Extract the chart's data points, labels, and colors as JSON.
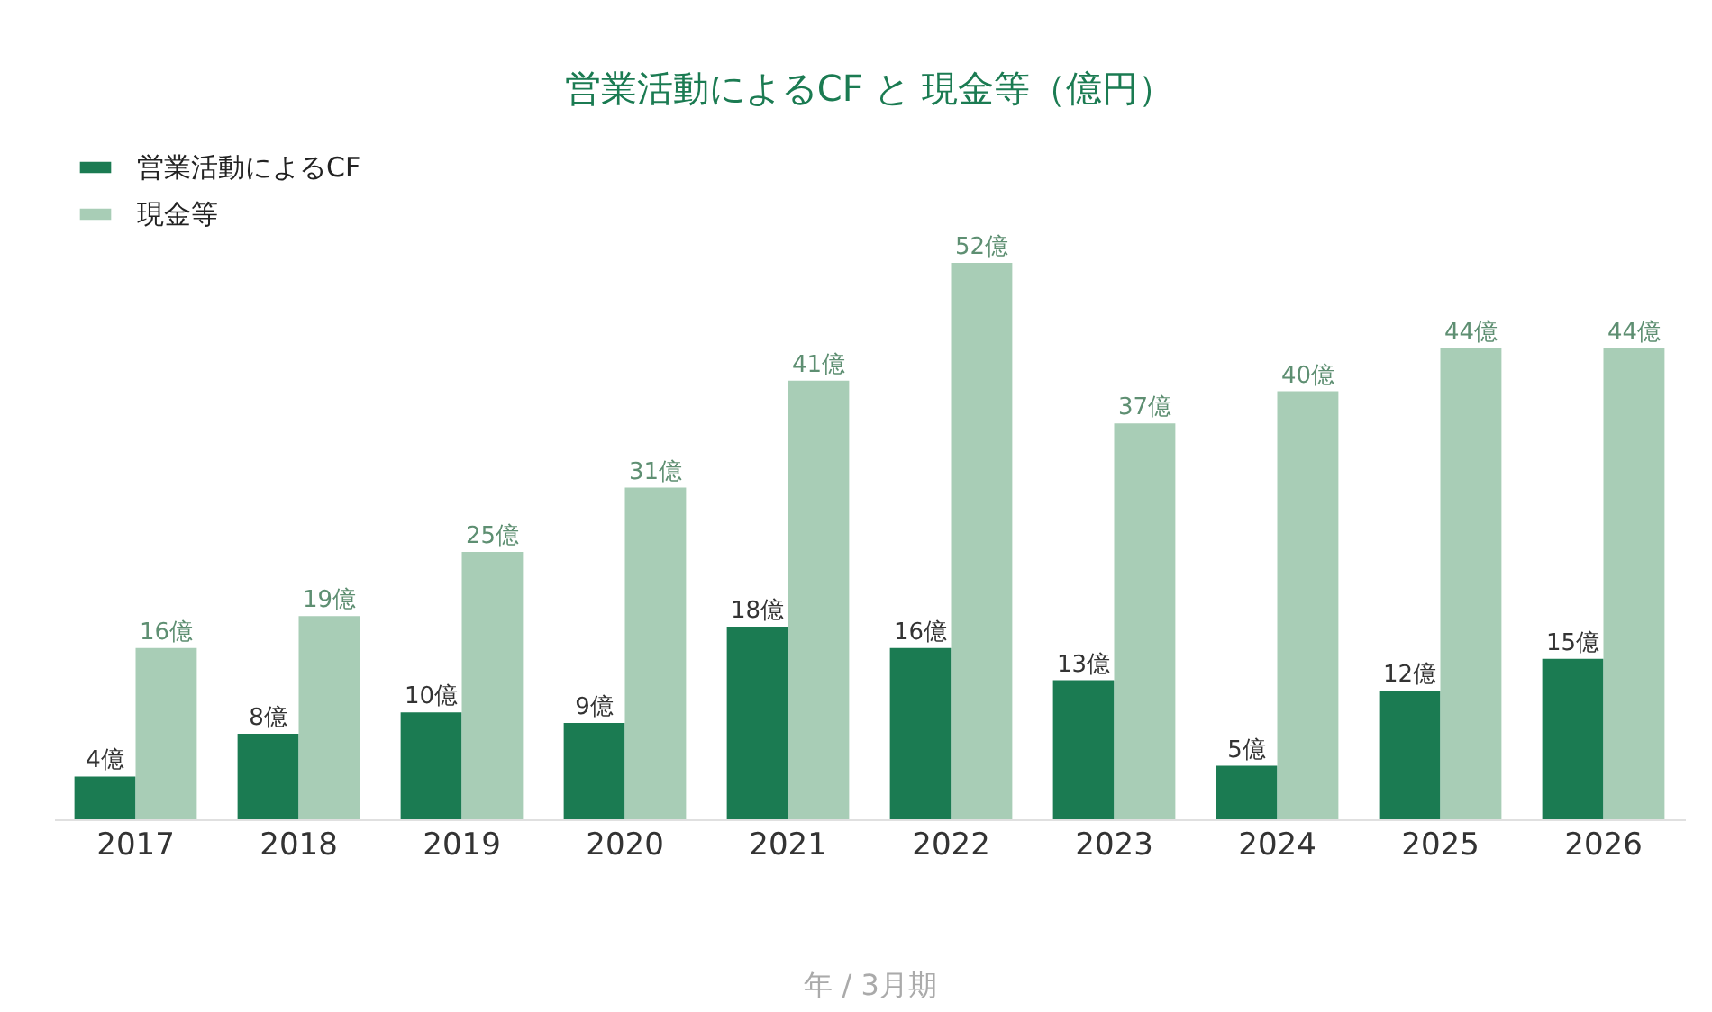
{
  "chart_data": {
    "type": "bar",
    "title": "営業活動によるCF と 現金等（億円）",
    "xlabel": "年 / 3月期",
    "categories": [
      "2017",
      "2018",
      "2019",
      "2020",
      "2021",
      "2022",
      "2023",
      "2024",
      "2025",
      "2026"
    ],
    "series": [
      {
        "name": "営業活動によるCF",
        "color": "#1b7b52",
        "values": [
          4,
          8,
          10,
          9,
          18,
          16,
          13,
          5,
          12,
          15
        ],
        "value_labels": [
          "4億",
          "8億",
          "10億",
          "9億",
          "18億",
          "16億",
          "13億",
          "5億",
          "12億",
          "15億"
        ]
      },
      {
        "name": "現金等",
        "color": "#a8cdb6",
        "values": [
          16,
          19,
          25,
          31,
          41,
          52,
          37,
          40,
          44,
          44
        ],
        "value_labels": [
          "16億",
          "19億",
          "25億",
          "31億",
          "41億",
          "52億",
          "37億",
          "40億",
          "44億",
          "44億"
        ]
      }
    ],
    "legend": "top left"
  }
}
